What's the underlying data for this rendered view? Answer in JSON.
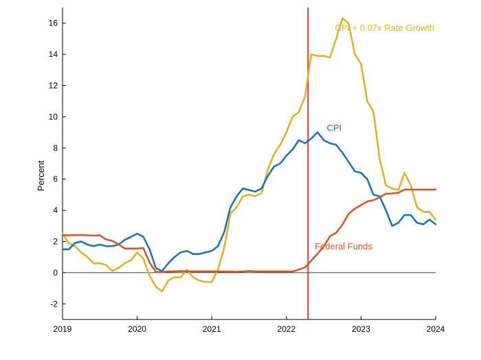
{
  "chart_data": {
    "type": "line",
    "title": "",
    "xlabel": "",
    "ylabel": "Percent",
    "xlim": [
      2019,
      2024
    ],
    "ylim": [
      -3,
      17
    ],
    "xticks": [
      2019,
      2020,
      2021,
      2022,
      2023,
      2024
    ],
    "xtick_labels": [
      "2019",
      "2020",
      "2021",
      "2022",
      "2023",
      "2024"
    ],
    "yticks": [
      -2,
      0,
      2,
      4,
      6,
      8,
      10,
      12,
      14,
      16
    ],
    "ytick_labels": [
      "-2",
      "0",
      "2",
      "4",
      "6",
      "8",
      "10",
      "12",
      "14",
      "16"
    ],
    "grid": false,
    "reference_lines": [
      {
        "orientation": "horizontal",
        "value": 0,
        "color": "#000000"
      },
      {
        "orientation": "vertical",
        "value": 2022.29,
        "color": "#d43f33"
      }
    ],
    "series": [
      {
        "name": "CPI",
        "label": "CPI",
        "label_x": 2022.54,
        "label_y": 9.1,
        "color": "#1f74b5",
        "x": [
          2019.0,
          2019.083,
          2019.167,
          2019.25,
          2019.333,
          2019.417,
          2019.5,
          2019.583,
          2019.667,
          2019.75,
          2019.833,
          2019.917,
          2020.0,
          2020.083,
          2020.167,
          2020.25,
          2020.333,
          2020.417,
          2020.5,
          2020.583,
          2020.667,
          2020.75,
          2020.833,
          2020.917,
          2021.0,
          2021.083,
          2021.167,
          2021.25,
          2021.333,
          2021.417,
          2021.5,
          2021.583,
          2021.667,
          2021.75,
          2021.833,
          2021.917,
          2022.0,
          2022.083,
          2022.167,
          2022.25,
          2022.333,
          2022.417,
          2022.5,
          2022.583,
          2022.667,
          2022.75,
          2022.833,
          2022.917,
          2023.0,
          2023.083,
          2023.167,
          2023.25,
          2023.333,
          2023.417,
          2023.5,
          2023.583,
          2023.667,
          2023.75,
          2023.833,
          2023.917,
          2024.0
        ],
        "y": [
          1.5,
          1.5,
          1.9,
          2.0,
          1.8,
          1.7,
          1.8,
          1.7,
          1.7,
          1.8,
          2.1,
          2.3,
          2.5,
          2.3,
          1.5,
          0.3,
          0.1,
          0.6,
          1.0,
          1.3,
          1.4,
          1.2,
          1.2,
          1.3,
          1.4,
          1.7,
          2.6,
          4.2,
          4.9,
          5.4,
          5.3,
          5.2,
          5.4,
          6.2,
          6.8,
          7.0,
          7.5,
          7.9,
          8.5,
          8.3,
          8.6,
          9.0,
          8.5,
          8.3,
          8.2,
          7.7,
          7.1,
          6.5,
          6.4,
          6.0,
          5.0,
          4.9,
          4.0,
          3.0,
          3.2,
          3.7,
          3.7,
          3.2,
          3.1,
          3.4,
          3.1
        ]
      },
      {
        "name": "CPI + 0.07x Rate Growth",
        "label": "CPI + 0.07x Rate Growth",
        "label_x": 2022.65,
        "label_y": 15.5,
        "color": "#e0b22b",
        "x": [
          2019.0,
          2019.083,
          2019.167,
          2019.25,
          2019.333,
          2019.417,
          2019.5,
          2019.583,
          2019.667,
          2019.75,
          2019.833,
          2019.917,
          2020.0,
          2020.083,
          2020.167,
          2020.25,
          2020.333,
          2020.417,
          2020.5,
          2020.583,
          2020.667,
          2020.75,
          2020.833,
          2020.917,
          2021.0,
          2021.083,
          2021.167,
          2021.25,
          2021.333,
          2021.417,
          2021.5,
          2021.583,
          2021.667,
          2021.75,
          2021.833,
          2021.917,
          2022.0,
          2022.083,
          2022.167,
          2022.25,
          2022.333,
          2022.417,
          2022.5,
          2022.583,
          2022.667,
          2022.75,
          2022.833,
          2022.917,
          2023.0,
          2023.083,
          2023.167,
          2023.25,
          2023.333,
          2023.417,
          2023.5,
          2023.583,
          2023.667,
          2023.75,
          2023.833,
          2023.917,
          2024.0
        ],
        "y": [
          2.5,
          1.9,
          1.7,
          1.3,
          1.0,
          0.6,
          0.6,
          0.5,
          0.1,
          0.3,
          0.6,
          0.8,
          1.3,
          0.9,
          -0.2,
          -0.9,
          -1.2,
          -0.5,
          -0.3,
          -0.3,
          0.2,
          -0.3,
          -0.5,
          -0.6,
          -0.6,
          0.2,
          1.6,
          3.8,
          4.2,
          4.9,
          5.0,
          4.9,
          5.1,
          6.6,
          7.6,
          8.2,
          9.0,
          10.0,
          10.3,
          11.3,
          14.0,
          13.9,
          13.9,
          13.8,
          15.0,
          16.3,
          16.0,
          14.0,
          13.4,
          11.0,
          10.3,
          7.3,
          5.6,
          5.4,
          5.3,
          6.4,
          5.6,
          4.2,
          3.9,
          3.9,
          3.4
        ]
      },
      {
        "name": "Federal Funds",
        "label": "Federal Funds",
        "label_x": 2022.38,
        "label_y": 1.5,
        "color": "#d15a2a",
        "x": [
          2019.0,
          2019.083,
          2019.167,
          2019.25,
          2019.333,
          2019.417,
          2019.5,
          2019.583,
          2019.667,
          2019.75,
          2019.833,
          2019.917,
          2020.0,
          2020.083,
          2020.167,
          2020.25,
          2020.333,
          2020.417,
          2020.5,
          2020.583,
          2020.667,
          2020.75,
          2020.833,
          2020.917,
          2021.0,
          2021.083,
          2021.167,
          2021.25,
          2021.333,
          2021.417,
          2021.5,
          2021.583,
          2021.667,
          2021.75,
          2021.833,
          2021.917,
          2022.0,
          2022.083,
          2022.167,
          2022.25,
          2022.333,
          2022.417,
          2022.5,
          2022.583,
          2022.667,
          2022.75,
          2022.833,
          2022.917,
          2023.0,
          2023.083,
          2023.167,
          2023.25,
          2023.333,
          2023.417,
          2023.5,
          2023.583,
          2023.667,
          2023.75,
          2023.833,
          2023.917,
          2024.0
        ],
        "y": [
          2.4,
          2.4,
          2.41,
          2.42,
          2.39,
          2.38,
          2.4,
          2.13,
          2.04,
          1.83,
          1.55,
          1.55,
          1.55,
          1.58,
          0.65,
          0.05,
          0.05,
          0.08,
          0.09,
          0.1,
          0.09,
          0.09,
          0.09,
          0.09,
          0.09,
          0.08,
          0.07,
          0.07,
          0.06,
          0.08,
          0.1,
          0.09,
          0.08,
          0.08,
          0.08,
          0.08,
          0.08,
          0.08,
          0.2,
          0.33,
          0.77,
          1.21,
          1.68,
          2.33,
          2.56,
          3.08,
          3.78,
          4.1,
          4.33,
          4.57,
          4.65,
          4.83,
          5.06,
          5.08,
          5.12,
          5.33,
          5.33,
          5.33,
          5.33,
          5.33,
          5.33
        ]
      }
    ]
  }
}
